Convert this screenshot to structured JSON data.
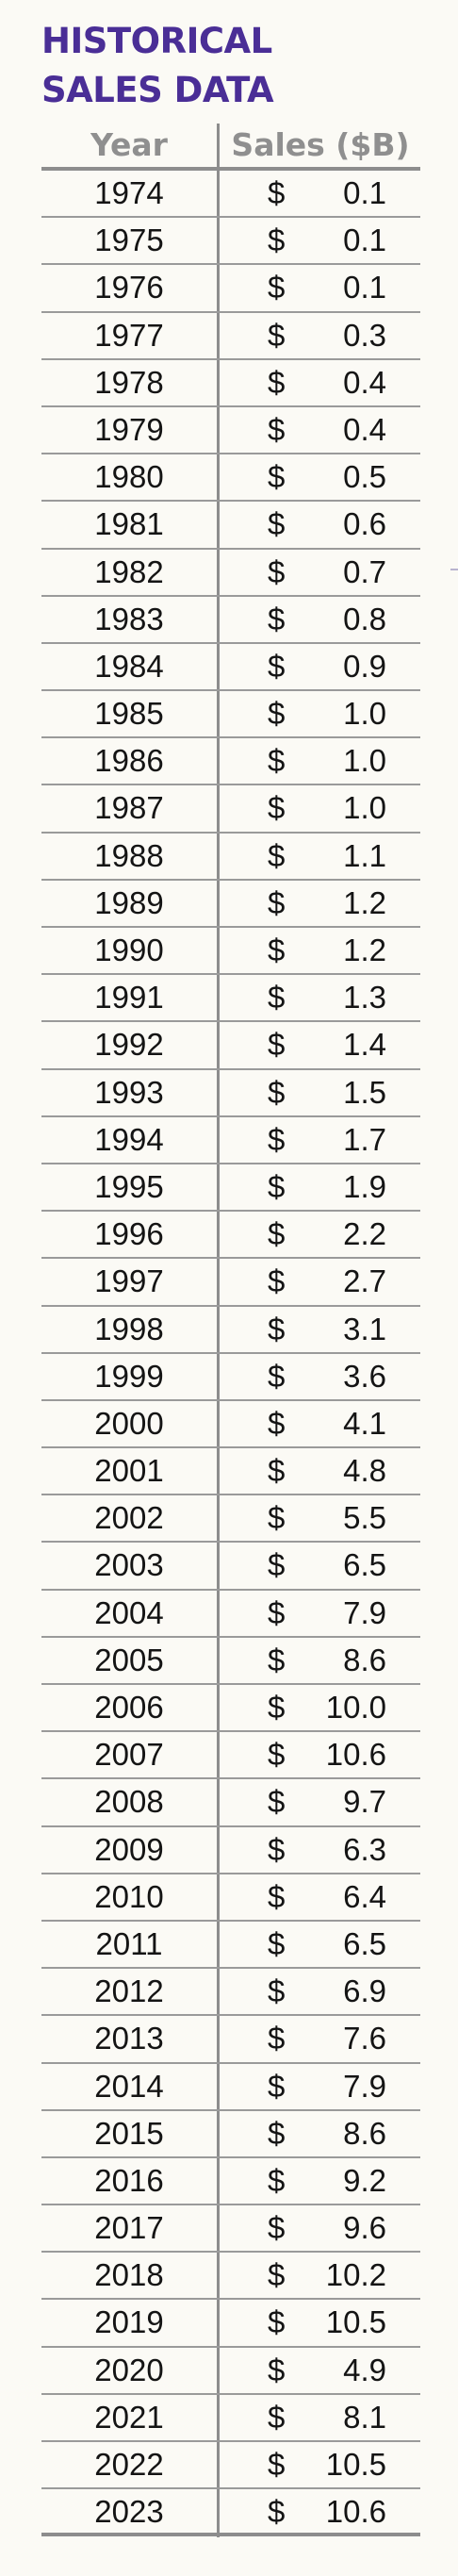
{
  "title_line1": "HISTORICAL",
  "title_line2": "SALES DATA",
  "headers": {
    "year": "Year",
    "sales": "Sales ($B)"
  },
  "currency_symbol": "$",
  "rows": [
    {
      "year": "1974",
      "sales": "0.1"
    },
    {
      "year": "1975",
      "sales": "0.1"
    },
    {
      "year": "1976",
      "sales": "0.1"
    },
    {
      "year": "1977",
      "sales": "0.3"
    },
    {
      "year": "1978",
      "sales": "0.4"
    },
    {
      "year": "1979",
      "sales": "0.4"
    },
    {
      "year": "1980",
      "sales": "0.5"
    },
    {
      "year": "1981",
      "sales": "0.6"
    },
    {
      "year": "1982",
      "sales": "0.7"
    },
    {
      "year": "1983",
      "sales": "0.8"
    },
    {
      "year": "1984",
      "sales": "0.9"
    },
    {
      "year": "1985",
      "sales": "1.0"
    },
    {
      "year": "1986",
      "sales": "1.0"
    },
    {
      "year": "1987",
      "sales": "1.0"
    },
    {
      "year": "1988",
      "sales": "1.1"
    },
    {
      "year": "1989",
      "sales": "1.2"
    },
    {
      "year": "1990",
      "sales": "1.2"
    },
    {
      "year": "1991",
      "sales": "1.3"
    },
    {
      "year": "1992",
      "sales": "1.4"
    },
    {
      "year": "1993",
      "sales": "1.5"
    },
    {
      "year": "1994",
      "sales": "1.7"
    },
    {
      "year": "1995",
      "sales": "1.9"
    },
    {
      "year": "1996",
      "sales": "2.2"
    },
    {
      "year": "1997",
      "sales": "2.7"
    },
    {
      "year": "1998",
      "sales": "3.1"
    },
    {
      "year": "1999",
      "sales": "3.6"
    },
    {
      "year": "2000",
      "sales": "4.1"
    },
    {
      "year": "2001",
      "sales": "4.8"
    },
    {
      "year": "2002",
      "sales": "5.5"
    },
    {
      "year": "2003",
      "sales": "6.5"
    },
    {
      "year": "2004",
      "sales": "7.9"
    },
    {
      "year": "2005",
      "sales": "8.6"
    },
    {
      "year": "2006",
      "sales": "10.0"
    },
    {
      "year": "2007",
      "sales": "10.6"
    },
    {
      "year": "2008",
      "sales": "9.7"
    },
    {
      "year": "2009",
      "sales": "6.3"
    },
    {
      "year": "2010",
      "sales": "6.4"
    },
    {
      "year": "2011",
      "sales": "6.5"
    },
    {
      "year": "2012",
      "sales": "6.9"
    },
    {
      "year": "2013",
      "sales": "7.6"
    },
    {
      "year": "2014",
      "sales": "7.9"
    },
    {
      "year": "2015",
      "sales": "8.6"
    },
    {
      "year": "2016",
      "sales": "9.2"
    },
    {
      "year": "2017",
      "sales": "9.6"
    },
    {
      "year": "2018",
      "sales": "10.2"
    },
    {
      "year": "2019",
      "sales": "10.5"
    },
    {
      "year": "2020",
      "sales": "4.9"
    },
    {
      "year": "2021",
      "sales": "8.1"
    },
    {
      "year": "2022",
      "sales": "10.5"
    },
    {
      "year": "2023",
      "sales": "10.6"
    }
  ],
  "colors": {
    "title": "#4a2e96",
    "header_text": "#8f8f8f",
    "rule": "#8d8d8d",
    "background": "#fbfaf5"
  }
}
